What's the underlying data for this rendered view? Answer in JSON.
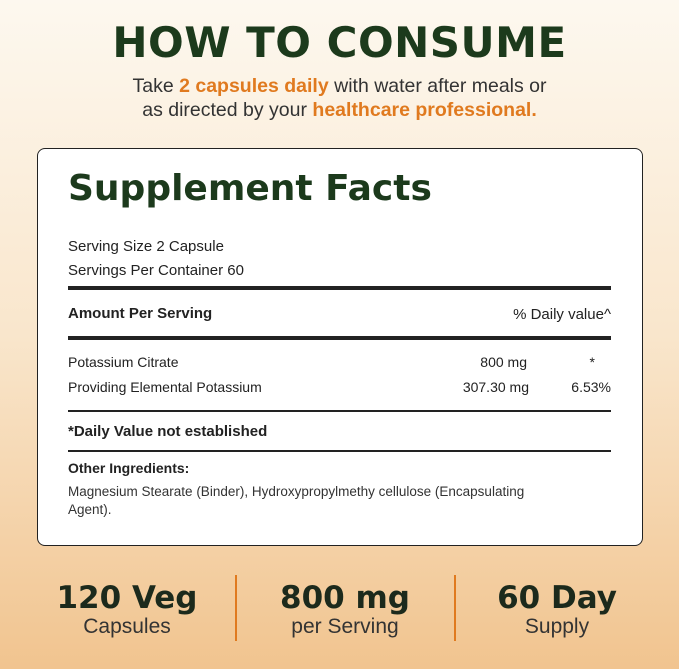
{
  "header": {
    "title": "HOW TO CONSUME",
    "instruction": [
      "Take",
      "2 capsules daily",
      "with water after meals or",
      "as directed by your",
      "healthcare professional."
    ]
  },
  "facts": {
    "title": "Supplement Facts",
    "serving_size": "Serving Size 2 Capsule",
    "servings_per_container": "Servings Per Container 60",
    "columns": [
      "Amount Per Serving",
      "% Daily value^"
    ],
    "rows": [
      [
        "Potassium Citrate",
        "800 mg",
        "*"
      ],
      [
        "Providing Elemental Potassium",
        "307.30 mg",
        "6.53%"
      ]
    ],
    "footnote": "*Daily Value not established",
    "other_ingredients": {
      "label": "Other Ingredients:",
      "text": "Magnesium Stearate (Binder), Hydroxypropylmethy cellulose (Encapsulating Agent)."
    }
  },
  "stats": [
    {
      "value": "120 Veg",
      "label": "Capsules"
    },
    {
      "value": "800 mg",
      "label": "per Serving"
    },
    {
      "value": "60 Day",
      "label": "Supply"
    }
  ]
}
